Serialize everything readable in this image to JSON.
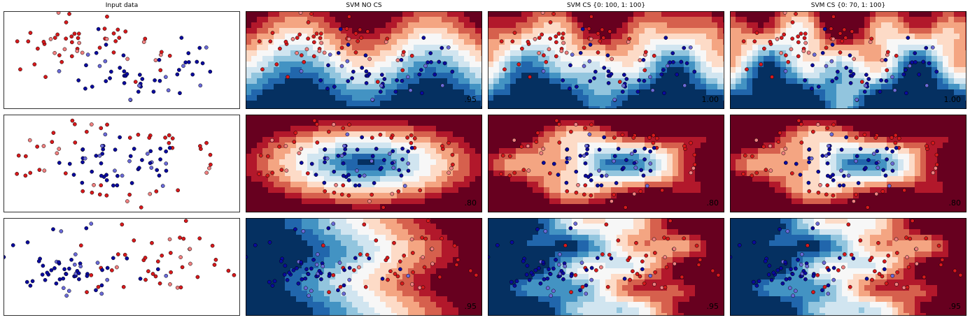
{
  "figure": {
    "column_titles": [
      "Input data",
      "SVM NO CS",
      "SVM CS {0: 100, 1: 100}",
      "SVM CS {0: 70, 1: 100}"
    ]
  },
  "colors": {
    "class_0": "#d7191c",
    "class_1": "#0a0a9e",
    "test_0": "#f08080",
    "test_1": "#6a6ad8",
    "marker_edge": "#000000",
    "cmap_rdbu": [
      "#67001f",
      "#b2182b",
      "#d6604d",
      "#f4a582",
      "#fddbc7",
      "#f7f7f7",
      "#d1e5f0",
      "#92c5de",
      "#4393c3",
      "#2166ac",
      "#053061"
    ]
  },
  "chart_data": [
    {
      "type": "scatter",
      "dataset": "moons",
      "column": "Input data",
      "row": 1,
      "xlim": [
        -1.8,
        2.8
      ],
      "ylim": [
        -1.2,
        1.6
      ]
    },
    {
      "type": "contour",
      "dataset": "moons",
      "column": "SVM NO CS",
      "row": 1,
      "score": ".95"
    },
    {
      "type": "contour",
      "dataset": "moons",
      "column": "SVM CS {0: 100, 1: 100}",
      "row": 1,
      "score": "1.00"
    },
    {
      "type": "contour",
      "dataset": "moons",
      "column": "SVM CS {0: 70, 1: 100}",
      "row": 1,
      "score": "1.00"
    },
    {
      "type": "scatter",
      "dataset": "circles",
      "column": "Input data",
      "row": 2,
      "xlim": [
        -2.4,
        2.4
      ],
      "ylim": [
        -1.5,
        1.5
      ]
    },
    {
      "type": "contour",
      "dataset": "circles",
      "column": "SVM NO CS",
      "row": 2,
      "score": ".80"
    },
    {
      "type": "contour",
      "dataset": "circles",
      "column": "SVM CS {0: 100, 1: 100}",
      "row": 2,
      "score": ".80"
    },
    {
      "type": "contour",
      "dataset": "circles",
      "column": "SVM CS {0: 70, 1: 100}",
      "row": 2,
      "score": ".80"
    },
    {
      "type": "scatter",
      "dataset": "linear",
      "column": "Input data",
      "row": 3,
      "xlim": [
        -4,
        4
      ],
      "ylim": [
        -3,
        3
      ]
    },
    {
      "type": "contour",
      "dataset": "linear",
      "column": "SVM NO CS",
      "row": 3,
      "score": ".95"
    },
    {
      "type": "contour",
      "dataset": "linear",
      "column": "SVM CS {0: 100, 1: 100}",
      "row": 3,
      "score": ".95"
    },
    {
      "type": "contour",
      "dataset": "linear",
      "column": "SVM CS {0: 70, 1: 100}",
      "row": 3,
      "score": ".95"
    }
  ]
}
